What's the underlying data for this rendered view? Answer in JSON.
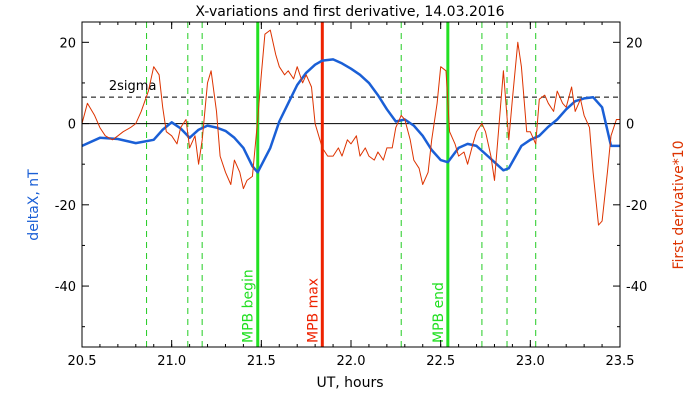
{
  "chart_data": {
    "type": "line",
    "title": "X-variations and first derivative, 14.03.2016",
    "xlabel": "UT, hours",
    "ylabel_left": "deltaX, nT",
    "ylabel_right": "First derivative*10",
    "xlim": [
      20.5,
      23.5
    ],
    "ylim": [
      -55,
      25
    ],
    "x_ticks": [
      20.5,
      21.0,
      21.5,
      22.0,
      22.5,
      23.0,
      23.5
    ],
    "x_tick_labels": [
      "20.5",
      "21.0",
      "21.5",
      "22.0",
      "22.5",
      "23.0",
      "23.5"
    ],
    "y_ticks": [
      20,
      0,
      -20,
      -40
    ],
    "y_tick_labels": [
      "20",
      "0",
      "-20",
      "-40"
    ],
    "sigma_level": 6.5,
    "sigma_label": "2sigma",
    "zero_level": 0,
    "green_dashed_x": [
      20.86,
      21.09,
      21.17,
      22.28,
      22.73,
      22.87,
      23.03
    ],
    "markers": [
      {
        "label": "MPB begin",
        "x": 21.48,
        "color": "#22e022"
      },
      {
        "label": "MPB max",
        "x": 21.84,
        "color": "#ee2200"
      },
      {
        "label": "MPB end",
        "x": 22.54,
        "color": "#22e022"
      }
    ],
    "series": [
      {
        "name": "deltaX",
        "axis": "left",
        "color": "#1a5fd6",
        "x": [
          20.5,
          20.6,
          20.7,
          20.8,
          20.9,
          20.95,
          21.0,
          21.05,
          21.1,
          21.15,
          21.2,
          21.25,
          21.3,
          21.35,
          21.4,
          21.45,
          21.48,
          21.55,
          21.6,
          21.65,
          21.7,
          21.75,
          21.8,
          21.84,
          21.9,
          21.95,
          22.0,
          22.05,
          22.1,
          22.15,
          22.2,
          22.25,
          22.3,
          22.35,
          22.4,
          22.45,
          22.5,
          22.54,
          22.6,
          22.65,
          22.7,
          22.75,
          22.8,
          22.85,
          22.88,
          22.95,
          23.0,
          23.05,
          23.1,
          23.15,
          23.2,
          23.25,
          23.3,
          23.35,
          23.4,
          23.45,
          23.5
        ],
        "y": [
          -5.5,
          -3.5,
          -3.8,
          -4.8,
          -4.0,
          -1.5,
          0.3,
          -1.2,
          -3.5,
          -1.5,
          -0.5,
          -1.0,
          -1.8,
          -3.5,
          -6.0,
          -10.5,
          -12.0,
          -6.0,
          0.5,
          5.0,
          9.5,
          12.5,
          14.5,
          15.5,
          15.8,
          14.8,
          13.5,
          12.0,
          10.0,
          7.0,
          3.5,
          0.5,
          1.0,
          -0.5,
          -3.0,
          -6.5,
          -9.0,
          -9.5,
          -6.0,
          -5.0,
          -5.5,
          -7.5,
          -9.5,
          -11.5,
          -11.0,
          -5.5,
          -4.0,
          -3.0,
          -0.8,
          1.0,
          3.5,
          5.5,
          6.2,
          6.5,
          4.0,
          -5.5,
          -5.5
        ]
      },
      {
        "name": "First derivative*10",
        "axis": "right",
        "color": "#dd3300",
        "x": [
          20.5,
          20.53,
          20.57,
          20.6,
          20.63,
          20.67,
          20.7,
          20.73,
          20.77,
          20.8,
          20.83,
          20.87,
          20.9,
          20.93,
          20.95,
          20.97,
          21.0,
          21.03,
          21.05,
          21.08,
          21.1,
          21.13,
          21.15,
          21.17,
          21.2,
          21.22,
          21.25,
          21.27,
          21.3,
          21.33,
          21.35,
          21.38,
          21.4,
          21.42,
          21.45,
          21.48,
          21.5,
          21.52,
          21.55,
          21.58,
          21.6,
          21.63,
          21.65,
          21.68,
          21.7,
          21.73,
          21.75,
          21.78,
          21.8,
          21.84,
          21.87,
          21.9,
          21.93,
          21.95,
          21.98,
          22.0,
          22.03,
          22.05,
          22.08,
          22.1,
          22.13,
          22.15,
          22.18,
          22.2,
          22.23,
          22.25,
          22.28,
          22.3,
          22.33,
          22.35,
          22.38,
          22.4,
          22.43,
          22.45,
          22.48,
          22.5,
          22.53,
          22.55,
          22.58,
          22.6,
          22.63,
          22.65,
          22.68,
          22.7,
          22.73,
          22.75,
          22.78,
          22.8,
          22.83,
          22.85,
          22.88,
          22.9,
          22.93,
          22.95,
          22.98,
          23.0,
          23.03,
          23.05,
          23.08,
          23.1,
          23.13,
          23.15,
          23.18,
          23.2,
          23.23,
          23.25,
          23.28,
          23.3,
          23.33,
          23.35,
          23.38,
          23.4,
          23.43,
          23.45,
          23.48,
          23.5
        ],
        "y": [
          0,
          5,
          2,
          -1,
          -3,
          -4,
          -3,
          -2,
          -1,
          0,
          3,
          8,
          14,
          12,
          4,
          -2,
          -3,
          -5,
          -1,
          1,
          -6,
          -3,
          -10,
          -4,
          10,
          13,
          3,
          -8,
          -12,
          -15,
          -9,
          -12,
          -16,
          -14,
          -13,
          1,
          12,
          22,
          23,
          17,
          14,
          12,
          13,
          11,
          14,
          10,
          12,
          9,
          0,
          -6,
          -8,
          -8,
          -6,
          -8,
          -4,
          -5,
          -3,
          -8,
          -6,
          -8,
          -9,
          -7,
          -9,
          -6,
          -6,
          -1,
          2,
          1,
          -4,
          -9,
          -11,
          -15,
          -12,
          -4,
          5,
          14,
          13,
          -2,
          -5,
          -8,
          -7,
          -10,
          -5,
          -2,
          0,
          -2,
          -8,
          -14,
          2,
          13,
          -4,
          6,
          20,
          14,
          -2,
          -2,
          -5,
          6,
          7,
          5,
          3,
          8,
          5,
          4,
          9,
          3,
          6,
          2,
          -1,
          -12,
          -25,
          -24,
          -12,
          -3,
          1,
          1
        ]
      }
    ]
  }
}
